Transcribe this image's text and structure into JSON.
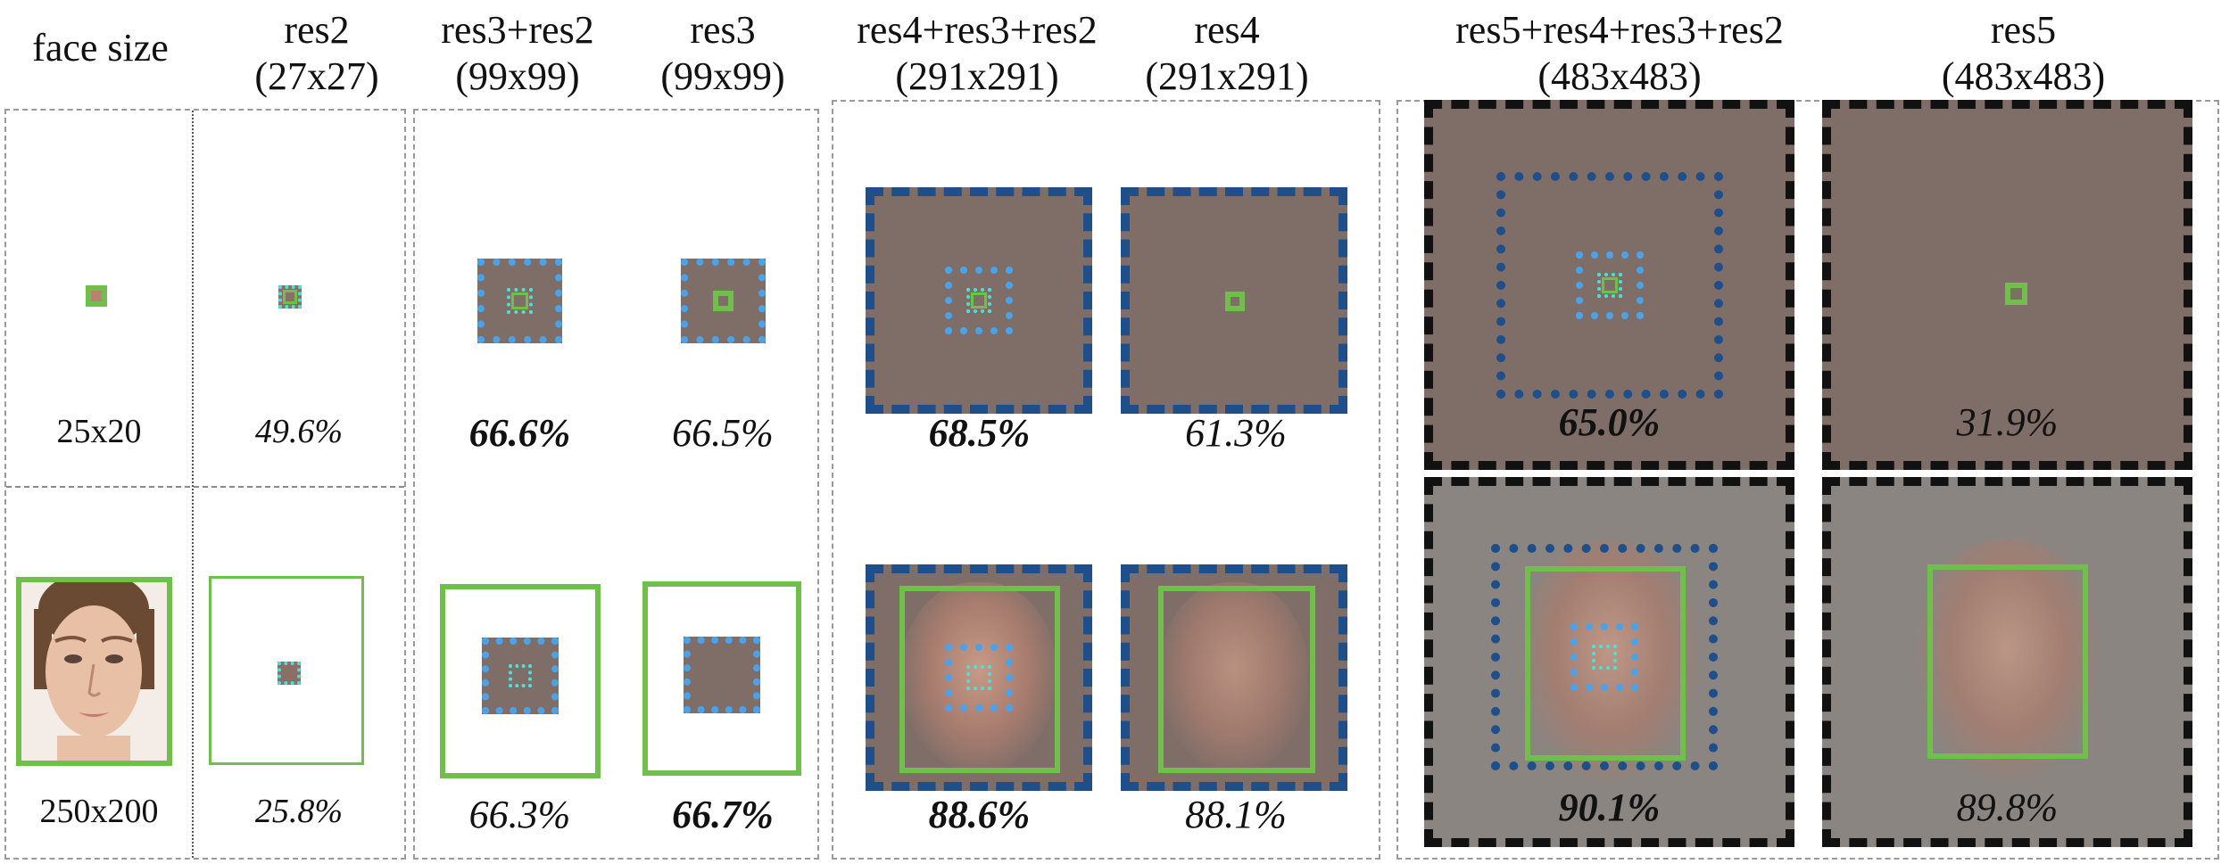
{
  "headers": [
    {
      "id": "face-size",
      "line1": "face size",
      "line2": ""
    },
    {
      "id": "res2",
      "line1": "res2",
      "line2": "(27x27)"
    },
    {
      "id": "res3-res2",
      "line1": "res3+res2",
      "line2": "(99x99)"
    },
    {
      "id": "res3",
      "line1": "res3",
      "line2": "(99x99)"
    },
    {
      "id": "res4-res3-res2",
      "line1": "res4+res3+res2",
      "line2": "(291x291)"
    },
    {
      "id": "res4",
      "line1": "res4",
      "line2": "(291x291)"
    },
    {
      "id": "res5-res4-res3-res2",
      "line1": "res5+res4+res3+res2",
      "line2": "(483x483)"
    },
    {
      "id": "res5",
      "line1": "res5",
      "line2": "(483x483)"
    }
  ],
  "rows": [
    {
      "face_size": "25x20",
      "results": [
        {
          "column": "res2",
          "value": "49.6%",
          "best": false
        },
        {
          "column": "res3+res2",
          "value": "66.6%",
          "best": true
        },
        {
          "column": "res3",
          "value": "66.5%",
          "best": false
        },
        {
          "column": "res4+res3+res2",
          "value": "68.5%",
          "best": true
        },
        {
          "column": "res4",
          "value": "61.3%",
          "best": false
        },
        {
          "column": "res5+res4+res3+res2",
          "value": "65.0%",
          "best": true
        },
        {
          "column": "res5",
          "value": "31.9%",
          "best": false
        }
      ]
    },
    {
      "face_size": "250x200",
      "results": [
        {
          "column": "res2",
          "value": "25.8%",
          "best": false
        },
        {
          "column": "res3+res2",
          "value": "66.3%",
          "best": false
        },
        {
          "column": "res3",
          "value": "66.7%",
          "best": true
        },
        {
          "column": "res4+res3+res2",
          "value": "88.6%",
          "best": true
        },
        {
          "column": "res4",
          "value": "88.1%",
          "best": false
        },
        {
          "column": "res5+res4+res3+res2",
          "value": "90.1%",
          "best": true
        },
        {
          "column": "res5",
          "value": "89.8%",
          "best": false
        }
      ]
    }
  ],
  "colors": {
    "green": "#6fbf4a",
    "light_blue": "#4aa3ea",
    "dark_blue": "#1f4f8a",
    "cyan": "#4ee0d8",
    "black_frame": "#111111",
    "template_background": "#7f6e68"
  }
}
